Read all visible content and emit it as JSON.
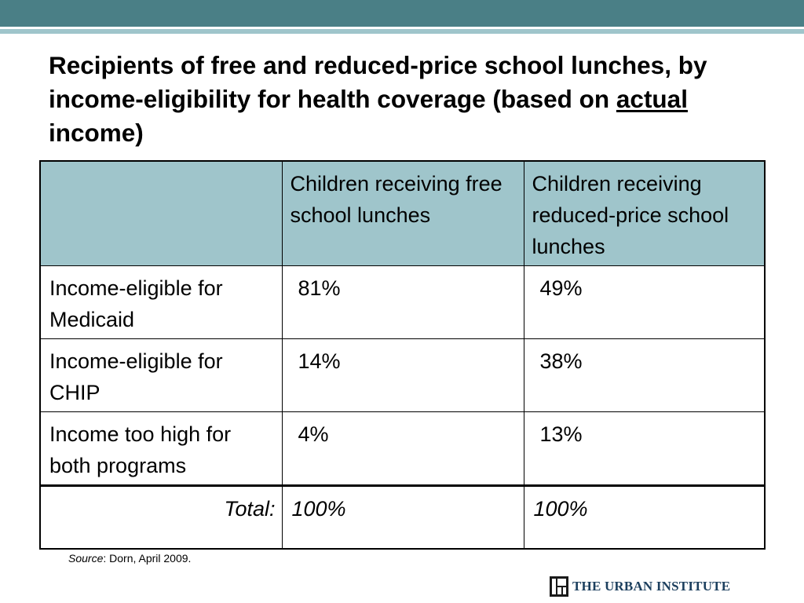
{
  "slide": {
    "title_part1": "Recipients of free and reduced-price school lunches, by income-eligibility for health coverage (based on ",
    "title_underlined": "actual",
    "title_part2": " income)"
  },
  "table": {
    "headers": [
      "",
      "Children receiving free school lunches",
      "Children receiving reduced-price school lunches"
    ],
    "rows": [
      {
        "label": "Income-eligible for Medicaid",
        "free": "81%",
        "reduced": "49%"
      },
      {
        "label": "Income-eligible for CHIP",
        "free": "14%",
        "reduced": "38%"
      },
      {
        "label": "Income too high for both programs",
        "free": "4%",
        "reduced": "13%"
      }
    ],
    "total": {
      "label": "Total:",
      "free": "100%",
      "reduced": "100%"
    }
  },
  "footer": {
    "source_label": "Source",
    "source_text": ": Dorn,  April 2009.",
    "logo_text": "THE URBAN INSTITUTE",
    "logo_icon": "urban-institute-logo-icon"
  },
  "colors": {
    "top_bar": "#4a7f86",
    "header_fill": "#9fc5cb",
    "logo_text": "#1c3f5e"
  }
}
